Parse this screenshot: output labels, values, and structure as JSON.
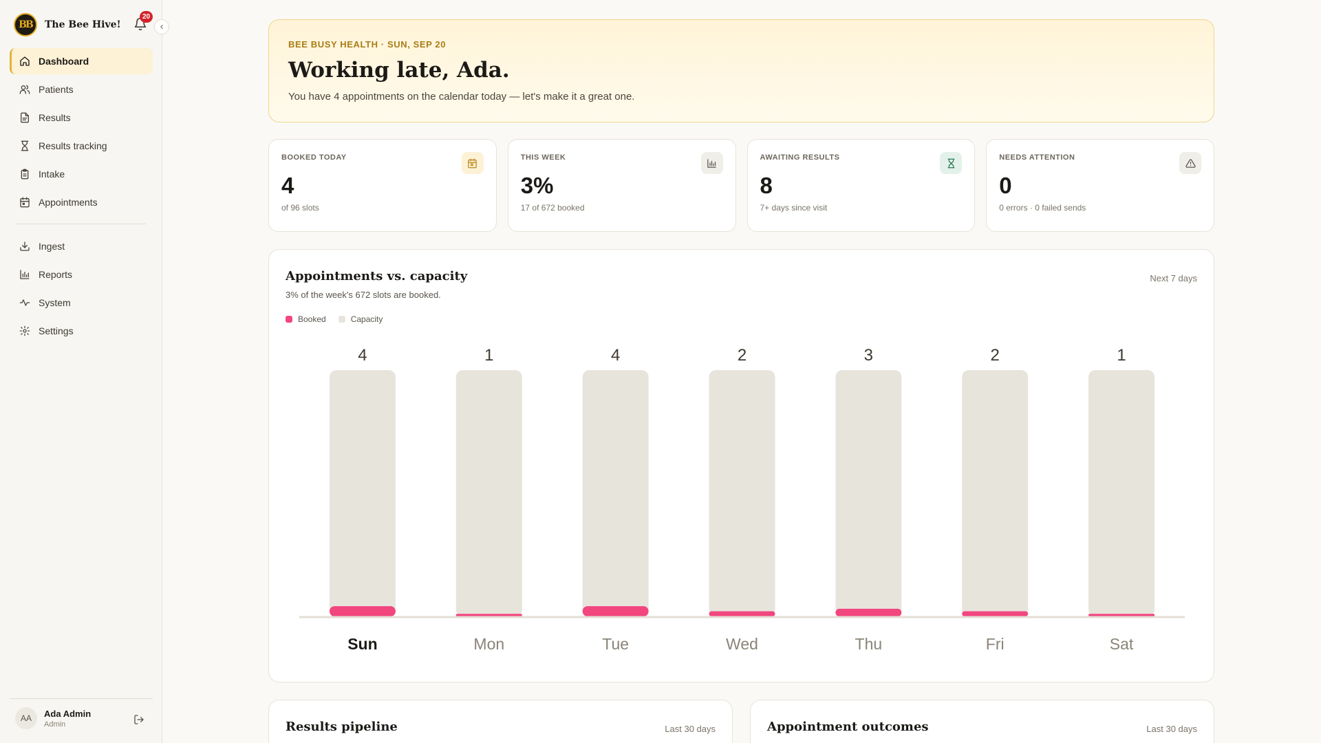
{
  "brand": {
    "name": "The Bee Hive!",
    "logo_text": "BB"
  },
  "notifications": {
    "count": "20"
  },
  "nav": {
    "primary": [
      {
        "label": "Dashboard",
        "icon": "home-icon",
        "active": true
      },
      {
        "label": "Patients",
        "icon": "users-icon"
      },
      {
        "label": "Results",
        "icon": "file-icon"
      },
      {
        "label": "Results tracking",
        "icon": "hourglass-icon"
      },
      {
        "label": "Intake",
        "icon": "clipboard-icon"
      },
      {
        "label": "Appointments",
        "icon": "calendar-icon"
      }
    ],
    "secondary": [
      {
        "label": "Ingest",
        "icon": "download-icon"
      },
      {
        "label": "Reports",
        "icon": "bar-chart-icon"
      },
      {
        "label": "System",
        "icon": "activity-icon"
      },
      {
        "label": "Settings",
        "icon": "gear-icon"
      }
    ]
  },
  "user": {
    "initials": "AA",
    "name": "Ada Admin",
    "role": "Admin"
  },
  "hero": {
    "eyebrow": "BEE BUSY HEALTH · SUN, SEP 20",
    "title": "Working late, Ada.",
    "subtitle": "You have 4 appointments on the calendar today — let's make it a great one."
  },
  "stats": [
    {
      "label": "BOOKED TODAY",
      "value": "4",
      "sub": "of 96 slots",
      "icon": "calendar-icon",
      "icon_bg": "#fdf1d6",
      "icon_color": "#b8861b"
    },
    {
      "label": "THIS WEEK",
      "value": "3%",
      "sub": "17 of 672 booked",
      "icon": "bar-chart-icon",
      "icon_bg": "#f0eee9",
      "icon_color": "#5a554c"
    },
    {
      "label": "AWAITING RESULTS",
      "value": "8",
      "sub": "7+ days since visit",
      "icon": "hourglass-icon",
      "icon_bg": "#e3f1ea",
      "icon_color": "#2e7a55"
    },
    {
      "label": "NEEDS ATTENTION",
      "value": "0",
      "sub": "0 errors · 0 failed sends",
      "icon": "alert-triangle-icon",
      "icon_bg": "#f0eee9",
      "icon_color": "#5a554c"
    }
  ],
  "chart_card": {
    "title": "Appointments vs. capacity",
    "subtitle": "3% of the week's 672 slots are booked.",
    "range": "Next 7 days"
  },
  "chart_data": {
    "type": "bar",
    "categories": [
      "Sun",
      "Mon",
      "Tue",
      "Wed",
      "Thu",
      "Fri",
      "Sat"
    ],
    "highlighted_category": "Sun",
    "series": [
      {
        "name": "Booked",
        "values": [
          4,
          1,
          4,
          2,
          3,
          2,
          1
        ],
        "color": "#f2467f"
      },
      {
        "name": "Capacity",
        "values": [
          96,
          96,
          96,
          96,
          96,
          96,
          96
        ],
        "color": "#e7e4dc"
      }
    ],
    "ylim": [
      0,
      96
    ],
    "grid": false,
    "legend": "top-left",
    "data_labels": [
      "4",
      "1",
      "4",
      "2",
      "3",
      "2",
      "1"
    ]
  },
  "bottom_cards": [
    {
      "title": "Results pipeline",
      "range": "Last 30 days"
    },
    {
      "title": "Appointment outcomes",
      "range": "Last 30 days"
    }
  ]
}
